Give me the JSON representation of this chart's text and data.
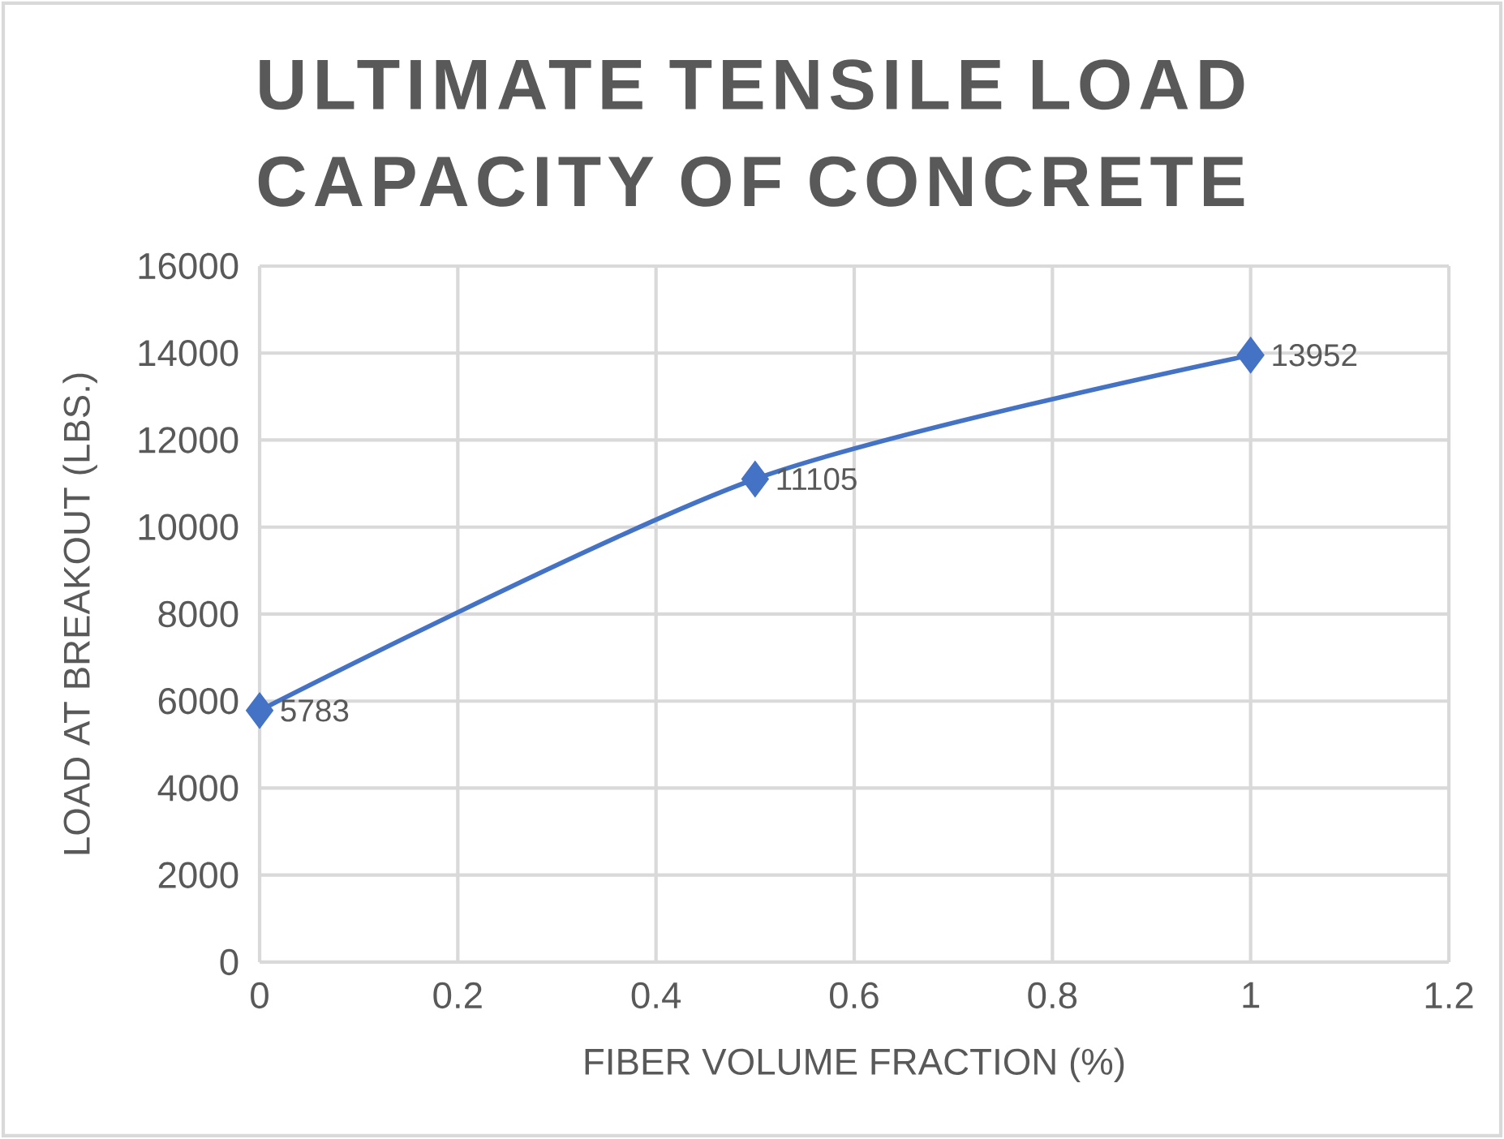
{
  "chart_data": {
    "type": "line",
    "title": "ULTIMATE TENSILE LOAD CAPACITY OF CONCRETE",
    "xlabel": "FIBER VOLUME FRACTION (%)",
    "ylabel": "LOAD AT BREAKOUT (LBS.)",
    "x": [
      0,
      0.5,
      1
    ],
    "values": [
      5783,
      11105,
      13952
    ],
    "color": "#4472c4",
    "marker": "diamond",
    "data_labels": true,
    "grid": true,
    "xlim": [
      0,
      1.2
    ],
    "xticks": [
      0,
      0.2,
      0.4,
      0.6,
      0.8,
      1,
      1.2
    ],
    "ylim": [
      0,
      16000
    ],
    "yticks": [
      0,
      2000,
      4000,
      6000,
      8000,
      10000,
      12000,
      14000,
      16000
    ]
  }
}
